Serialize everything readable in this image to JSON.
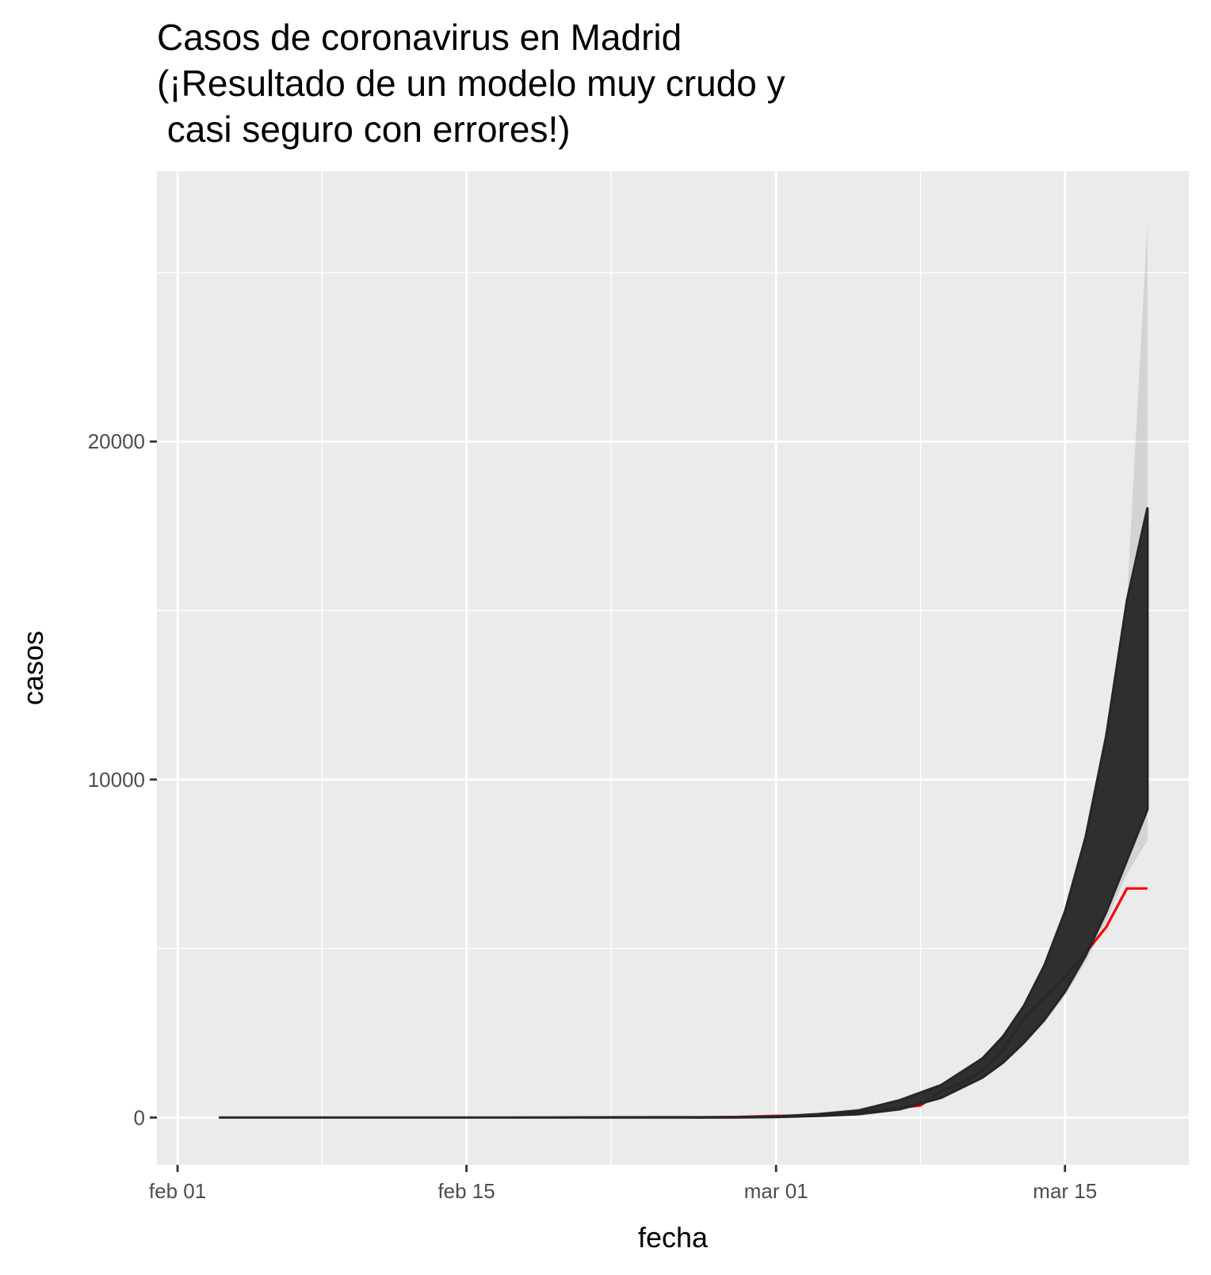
{
  "chart_data": {
    "type": "line",
    "title": "Casos de coronavirus en Madrid\n(¡Resultado de un modelo muy crudo y\n casi seguro con errores!)",
    "xlabel": "fecha",
    "ylabel": "casos",
    "x_ticks": [
      {
        "date": "2020-02-01",
        "label": "feb 01"
      },
      {
        "date": "2020-02-15",
        "label": "feb 15"
      },
      {
        "date": "2020-03-01",
        "label": "mar 01"
      },
      {
        "date": "2020-03-15",
        "label": "mar 15"
      }
    ],
    "y_ticks": [
      0,
      10000,
      20000
    ],
    "xlim": [
      "2020-01-31",
      "2020-03-21"
    ],
    "ylim": [
      -1400,
      28000
    ],
    "grid": true,
    "background": "#ebebeb",
    "series": [
      {
        "color": "#ff0000",
        "x": [
          "2020-02-26",
          "2020-02-27",
          "2020-02-28",
          "2020-02-29",
          "2020-03-01",
          "2020-03-02",
          "2020-03-03",
          "2020-03-04",
          "2020-03-05",
          "2020-03-06",
          "2020-03-07",
          "2020-03-08",
          "2020-03-09",
          "2020-03-10",
          "2020-03-11",
          "2020-03-12",
          "2020-03-13",
          "2020-03-14",
          "2020-03-15",
          "2020-03-16",
          "2020-03-17",
          "2020-03-18",
          "2020-03-19"
        ],
        "y": [
          3,
          10,
          15,
          29,
          48,
          52,
          90,
          137,
          174,
          202,
          289,
          358,
          782,
          1024,
          1388,
          1990,
          2940,
          3544,
          4165,
          4871,
          5637,
          6777,
          6777
        ]
      },
      {
        "color": "#262626",
        "band": true,
        "x": [
          "2020-02-03",
          "2020-02-10",
          "2020-02-17",
          "2020-02-24",
          "2020-02-28",
          "2020-03-01",
          "2020-03-03",
          "2020-03-05",
          "2020-03-07",
          "2020-03-09",
          "2020-03-11",
          "2020-03-12",
          "2020-03-13",
          "2020-03-14",
          "2020-03-15",
          "2020-03-16",
          "2020-03-17",
          "2020-03-18",
          "2020-03-19"
        ],
        "y_low": [
          0,
          0,
          0,
          0,
          0,
          10,
          40,
          90,
          230,
          560,
          1150,
          1580,
          2150,
          2800,
          3600,
          4600,
          5800,
          7200,
          8200
        ],
        "y_high": [
          0,
          0,
          0,
          10,
          30,
          70,
          140,
          270,
          520,
          960,
          1750,
          2400,
          3300,
          4500,
          6100,
          8300,
          11300,
          15300,
          26500
        ]
      }
    ]
  }
}
